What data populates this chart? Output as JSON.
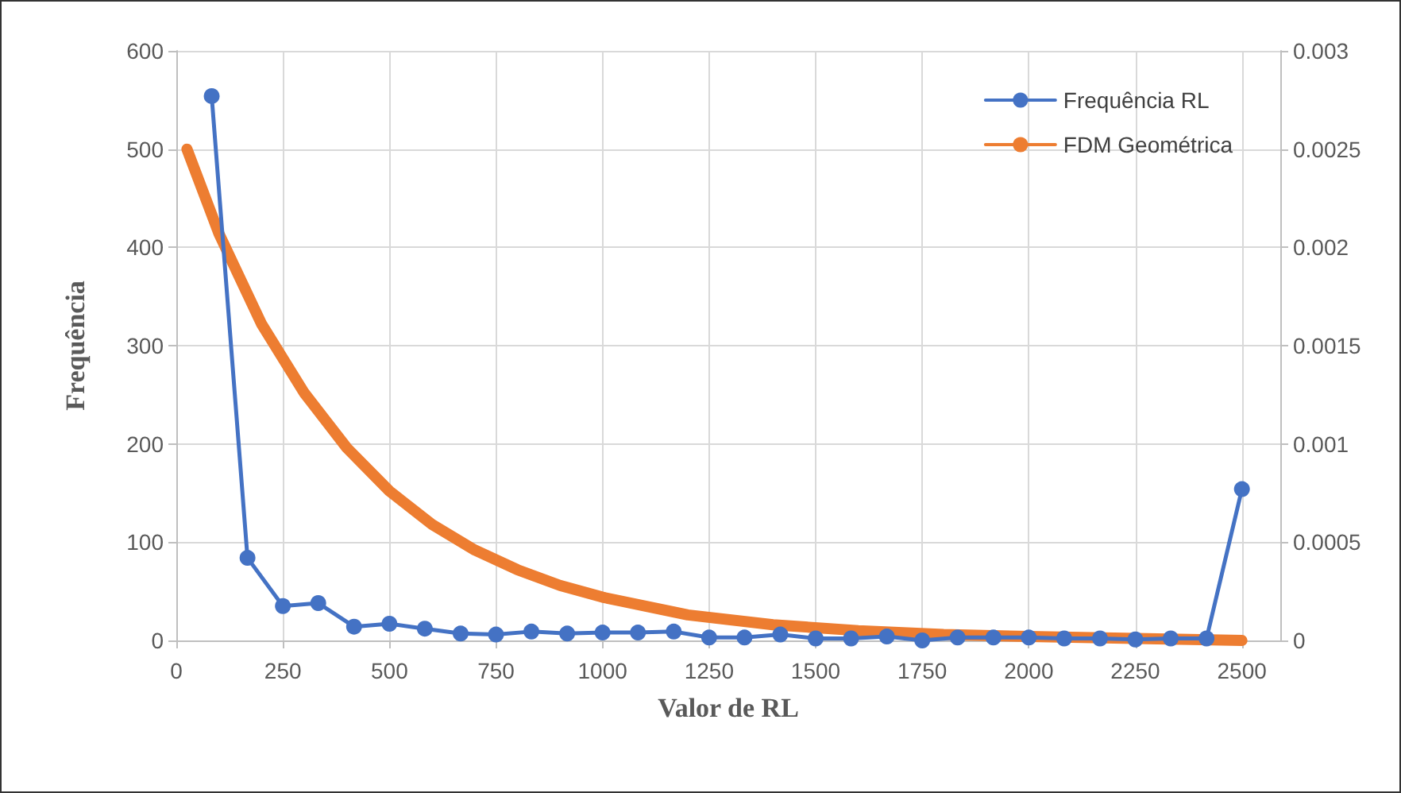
{
  "chart_data": {
    "type": "line",
    "xlabel": "Valor de RL",
    "ylabel": "Frequência",
    "xlim": [
      0,
      2590
    ],
    "xticks": [
      0,
      250,
      500,
      750,
      1000,
      1250,
      1500,
      1750,
      2000,
      2250,
      2500
    ],
    "ylim": [
      0,
      600
    ],
    "yticks": [
      0,
      100,
      200,
      300,
      400,
      500,
      600
    ],
    "y2lim": [
      0,
      0.003
    ],
    "y2ticks": [
      0,
      0.0005,
      0.001,
      0.0015,
      0.002,
      0.0025,
      0.003
    ],
    "grid": true,
    "legend": "top right",
    "series": [
      {
        "name": "Frequência RL",
        "color": "#4472c4",
        "marker": "circle",
        "x": [
          83,
          167,
          250,
          333,
          417,
          500,
          583,
          667,
          750,
          833,
          917,
          1000,
          1083,
          1167,
          1250,
          1333,
          1417,
          1500,
          1583,
          1667,
          1750,
          1833,
          1917,
          2000,
          2083,
          2167,
          2250,
          2333,
          2417,
          2500
        ],
        "values": [
          554,
          84,
          35,
          38,
          14,
          17,
          12,
          7,
          6,
          9,
          7,
          8,
          8,
          9,
          3,
          3,
          6,
          2,
          2,
          4,
          0,
          3,
          3,
          3,
          2,
          2,
          1,
          2,
          2,
          154
        ]
      },
      {
        "name": "FDM Geométrica",
        "color": "#ed7d31",
        "marker": "none",
        "axis": "y2",
        "x": [
          25,
          100,
          200,
          300,
          400,
          500,
          600,
          700,
          800,
          900,
          1000,
          1200,
          1400,
          1600,
          1800,
          2000,
          2250,
          2500
        ],
        "values": [
          0.0025,
          0.00207,
          0.00161,
          0.00126,
          0.00098,
          0.00076,
          0.00059,
          0.00046,
          0.00036,
          0.00028,
          0.00022,
          0.00013,
          8e-05,
          5e-05,
          3e-05,
          2e-05,
          1e-05,
          0
        ]
      }
    ]
  }
}
